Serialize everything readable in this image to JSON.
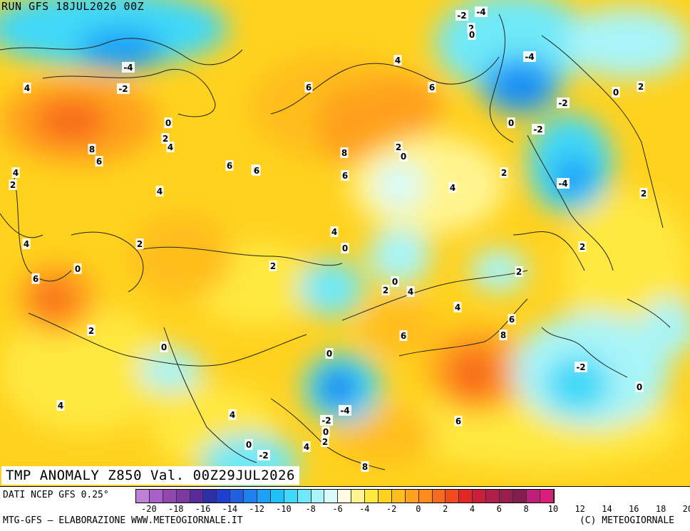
{
  "header": {
    "run_title": "RUN GFS 18JUL2026 00Z",
    "field_title": "TMP ANOMALY Z850 Val. 00Z29JUL2026"
  },
  "footer": {
    "source": "DATI NCEP GFS 0.25°",
    "credits": "MTG-GFS — ELABORAZIONE WWW.METEOGIORNALE.IT",
    "copyright": "(C) METEOGIORNALE"
  },
  "legend": {
    "colors": [
      "#c080d8",
      "#a860c8",
      "#9048b0",
      "#7a3aa0",
      "#5a2a9a",
      "#2d2fa8",
      "#1f3fd0",
      "#1f5fe0",
      "#1e80ee",
      "#1ea0f8",
      "#20c0f8",
      "#40d8f8",
      "#70e8f8",
      "#a8f4f8",
      "#d8fafa",
      "#fffae0",
      "#fff490",
      "#ffe840",
      "#ffd21e",
      "#ffbe1e",
      "#ffa01e",
      "#ff8a1e",
      "#f86a1e",
      "#f04a1e",
      "#e02828",
      "#c81e3a",
      "#b01e4a",
      "#981e50",
      "#801e50",
      "#c01e78",
      "#d8207a"
    ],
    "ticks": [
      "-20",
      "-18",
      "-16",
      "-14",
      "-12",
      "-10",
      "-8",
      "-6",
      "-4",
      "-2",
      "0",
      "2",
      "4",
      "6",
      "8",
      "10",
      "12",
      "14",
      "16",
      "18",
      "20"
    ]
  },
  "map": {
    "contour_labels": [
      "-2",
      "-4",
      "2",
      "0",
      "-4",
      "-2",
      "0",
      "4",
      "6",
      "6",
      "8",
      "6",
      "6",
      "8",
      "2",
      "0",
      "4",
      "2",
      "-4",
      "0",
      "-2",
      "-2",
      "-4",
      "2",
      "2",
      "0",
      "4",
      "4",
      "6",
      "6",
      "4",
      "2",
      "6",
      "4",
      "2",
      "0",
      "2",
      "4",
      "4",
      "2",
      "0",
      "2",
      "0",
      "4",
      "6",
      "8",
      "4",
      "2",
      "6",
      "0",
      "-4",
      "-2",
      "0",
      "2",
      "4",
      "0",
      "-2",
      "2",
      "4",
      "6",
      "0",
      "-2",
      "0",
      "2",
      "4",
      "6",
      "8",
      "2"
    ]
  }
}
